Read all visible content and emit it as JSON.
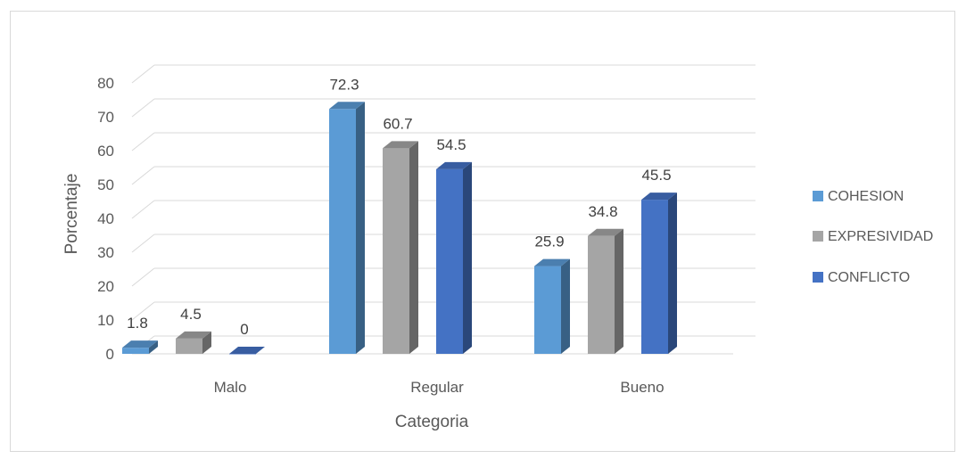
{
  "chart_data": {
    "type": "bar",
    "categories": [
      "Malo",
      "Regular",
      "Bueno"
    ],
    "series": [
      {
        "name": "COHESION",
        "values": [
          1.8,
          72.3,
          25.9
        ]
      },
      {
        "name": "EXPRESIVIDAD",
        "values": [
          4.5,
          60.7,
          34.8
        ]
      },
      {
        "name": "CONFLICTO",
        "values": [
          0,
          54.5,
          45.5
        ]
      }
    ],
    "data_labels": [
      [
        "1.8",
        "72.3",
        "25.9"
      ],
      [
        "4.5",
        "60.7",
        "34.8"
      ],
      [
        "0",
        "54.5",
        "45.5"
      ]
    ],
    "title": "",
    "xlabel": "Categoria",
    "ylabel": "Porcentaje",
    "ylim": [
      0,
      80
    ],
    "yticks": [
      "0",
      "10",
      "20",
      "30",
      "40",
      "50",
      "60",
      "70",
      "80"
    ],
    "grid": true,
    "legend_position": "right",
    "style": "3d-column",
    "colors": {
      "COHESION": "#5b9bd5",
      "EXPRESIVIDAD": "#a5a5a5",
      "CONFLICTO": "#4472c4",
      "grid": "#d9d9d9"
    }
  }
}
